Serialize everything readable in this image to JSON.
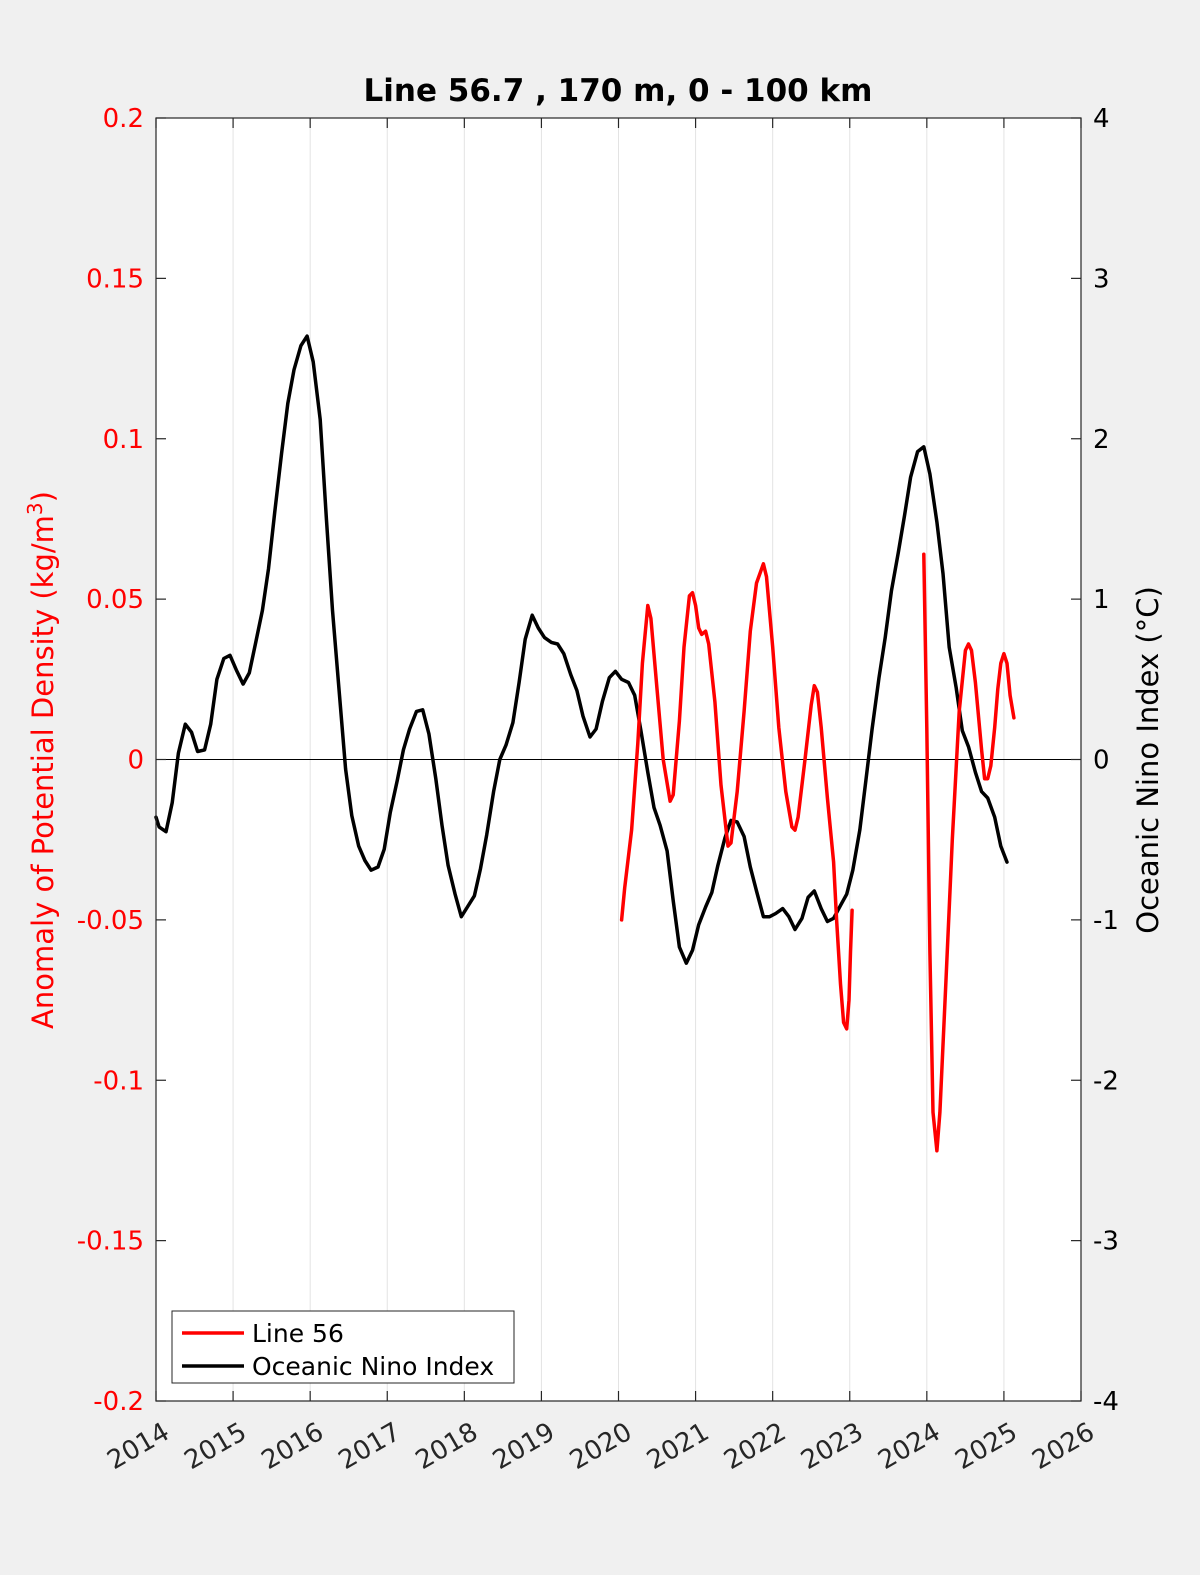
{
  "chart_data": {
    "type": "line",
    "title": "Line 56.7 , 170 m, 0 - 100 km",
    "xlabel": "",
    "ylabel_left": "Anomaly of Potential Density (kg/m",
    "ylabel_left_sup": "3",
    "ylabel_left_close": ")",
    "ylabel_right": "Oceanic Nino Index (°C)",
    "xlim": [
      2014,
      2026
    ],
    "ylim_left": [
      -0.2,
      0.2
    ],
    "ylim_right": [
      -4,
      4
    ],
    "x_ticks": [
      2014,
      2015,
      2016,
      2017,
      2018,
      2019,
      2020,
      2021,
      2022,
      2023,
      2024,
      2025,
      2026
    ],
    "x_tick_labels": [
      "2014",
      "2015",
      "2016",
      "2017",
      "2018",
      "2019",
      "2020",
      "2021",
      "2022",
      "2023",
      "2024",
      "2025",
      "2026"
    ],
    "y_left_ticks": [
      -0.2,
      -0.15,
      -0.1,
      -0.05,
      0,
      0.05,
      0.1,
      0.15,
      0.2
    ],
    "y_left_tick_labels": [
      "-0.2",
      "-0.15",
      "-0.1",
      "-0.05",
      "0",
      "0.05",
      "0.1",
      "0.15",
      "0.2"
    ],
    "y_right_ticks": [
      -4,
      -3,
      -2,
      -1,
      0,
      1,
      2,
      3,
      4
    ],
    "y_right_tick_labels": [
      "-4",
      "-3",
      "-2",
      "-1",
      "0",
      "1",
      "2",
      "3",
      "4"
    ],
    "grid": "vertical",
    "legend_position": "bottom-left",
    "colors": {
      "line56": "#ff0000",
      "oni": "#000000",
      "left_axis": "#ff0000",
      "right_axis": "#000000"
    },
    "series": [
      {
        "name": "Line 56",
        "axis": "left",
        "color": "#ff0000",
        "segments": [
          [
            [
              2020.04,
              -0.05
            ],
            [
              2020.08,
              -0.04
            ],
            [
              2020.17,
              -0.022
            ],
            [
              2020.25,
              0.005
            ],
            [
              2020.31,
              0.03
            ],
            [
              2020.38,
              0.048
            ],
            [
              2020.42,
              0.044
            ],
            [
              2020.5,
              0.022
            ],
            [
              2020.58,
              0.0
            ],
            [
              2020.67,
              -0.013
            ],
            [
              2020.71,
              -0.011
            ],
            [
              2020.79,
              0.012
            ],
            [
              2020.85,
              0.035
            ],
            [
              2020.92,
              0.051
            ],
            [
              2020.96,
              0.052
            ],
            [
              2021.0,
              0.048
            ],
            [
              2021.04,
              0.041
            ],
            [
              2021.08,
              0.039
            ],
            [
              2021.13,
              0.04
            ],
            [
              2021.17,
              0.036
            ],
            [
              2021.25,
              0.018
            ],
            [
              2021.33,
              -0.008
            ],
            [
              2021.42,
              -0.027
            ],
            [
              2021.46,
              -0.026
            ],
            [
              2021.54,
              -0.01
            ],
            [
              2021.63,
              0.015
            ],
            [
              2021.71,
              0.04
            ],
            [
              2021.79,
              0.055
            ],
            [
              2021.88,
              0.061
            ],
            [
              2021.92,
              0.057
            ],
            [
              2022.0,
              0.035
            ],
            [
              2022.08,
              0.01
            ],
            [
              2022.17,
              -0.01
            ],
            [
              2022.25,
              -0.021
            ],
            [
              2022.29,
              -0.022
            ],
            [
              2022.33,
              -0.018
            ],
            [
              2022.42,
              0.0
            ],
            [
              2022.5,
              0.017
            ],
            [
              2022.54,
              0.023
            ],
            [
              2022.58,
              0.021
            ],
            [
              2022.63,
              0.01
            ],
            [
              2022.71,
              -0.012
            ],
            [
              2022.79,
              -0.032
            ],
            [
              2022.83,
              -0.05
            ],
            [
              2022.88,
              -0.07
            ],
            [
              2022.92,
              -0.082
            ],
            [
              2022.96,
              -0.084
            ],
            [
              2022.99,
              -0.075
            ],
            [
              2023.01,
              -0.06
            ],
            [
              2023.03,
              -0.047
            ]
          ],
          [
            [
              2023.96,
              0.064
            ],
            [
              2024.0,
              0.01
            ],
            [
              2024.04,
              -0.06
            ],
            [
              2024.08,
              -0.11
            ],
            [
              2024.13,
              -0.122
            ],
            [
              2024.17,
              -0.11
            ],
            [
              2024.25,
              -0.068
            ],
            [
              2024.33,
              -0.025
            ],
            [
              2024.42,
              0.015
            ],
            [
              2024.5,
              0.034
            ],
            [
              2024.54,
              0.036
            ],
            [
              2024.58,
              0.034
            ],
            [
              2024.63,
              0.024
            ],
            [
              2024.71,
              0.003
            ],
            [
              2024.75,
              -0.006
            ],
            [
              2024.79,
              -0.006
            ],
            [
              2024.83,
              -0.002
            ],
            [
              2024.88,
              0.01
            ],
            [
              2024.92,
              0.022
            ],
            [
              2024.96,
              0.03
            ],
            [
              2025.0,
              0.033
            ],
            [
              2025.04,
              0.03
            ],
            [
              2025.08,
              0.02
            ],
            [
              2025.13,
              0.013
            ]
          ]
        ]
      },
      {
        "name": "Oceanic Nino Index",
        "axis": "right",
        "color": "#000000",
        "segments": [
          [
            [
              2014.0,
              -0.36
            ],
            [
              2014.04,
              -0.42
            ],
            [
              2014.13,
              -0.45
            ],
            [
              2014.21,
              -0.27
            ],
            [
              2014.29,
              0.04
            ],
            [
              2014.38,
              0.22
            ],
            [
              2014.46,
              0.17
            ],
            [
              2014.54,
              0.05
            ],
            [
              2014.63,
              0.06
            ],
            [
              2014.71,
              0.22
            ],
            [
              2014.79,
              0.5
            ],
            [
              2014.88,
              0.63
            ],
            [
              2014.96,
              0.65
            ],
            [
              2015.04,
              0.56
            ],
            [
              2015.13,
              0.47
            ],
            [
              2015.21,
              0.54
            ],
            [
              2015.29,
              0.72
            ],
            [
              2015.38,
              0.93
            ],
            [
              2015.46,
              1.19
            ],
            [
              2015.54,
              1.54
            ],
            [
              2015.63,
              1.91
            ],
            [
              2015.71,
              2.22
            ],
            [
              2015.79,
              2.43
            ],
            [
              2015.88,
              2.58
            ],
            [
              2015.96,
              2.64
            ],
            [
              2016.04,
              2.48
            ],
            [
              2016.13,
              2.12
            ],
            [
              2016.21,
              1.5
            ],
            [
              2016.29,
              0.93
            ],
            [
              2016.38,
              0.4
            ],
            [
              2016.46,
              -0.06
            ],
            [
              2016.54,
              -0.35
            ],
            [
              2016.63,
              -0.54
            ],
            [
              2016.71,
              -0.63
            ],
            [
              2016.79,
              -0.69
            ],
            [
              2016.88,
              -0.67
            ],
            [
              2016.96,
              -0.56
            ],
            [
              2017.04,
              -0.33
            ],
            [
              2017.13,
              -0.13
            ],
            [
              2017.21,
              0.06
            ],
            [
              2017.29,
              0.19
            ],
            [
              2017.38,
              0.3
            ],
            [
              2017.46,
              0.31
            ],
            [
              2017.54,
              0.16
            ],
            [
              2017.63,
              -0.12
            ],
            [
              2017.71,
              -0.41
            ],
            [
              2017.79,
              -0.66
            ],
            [
              2017.88,
              -0.84
            ],
            [
              2017.96,
              -0.98
            ],
            [
              2018.04,
              -0.92
            ],
            [
              2018.13,
              -0.85
            ],
            [
              2018.21,
              -0.68
            ],
            [
              2018.29,
              -0.47
            ],
            [
              2018.38,
              -0.2
            ],
            [
              2018.46,
              0.0
            ],
            [
              2018.54,
              0.09
            ],
            [
              2018.63,
              0.23
            ],
            [
              2018.71,
              0.48
            ],
            [
              2018.79,
              0.75
            ],
            [
              2018.88,
              0.9
            ],
            [
              2018.96,
              0.82
            ],
            [
              2019.04,
              0.76
            ],
            [
              2019.13,
              0.73
            ],
            [
              2019.21,
              0.72
            ],
            [
              2019.29,
              0.66
            ],
            [
              2019.38,
              0.53
            ],
            [
              2019.46,
              0.43
            ],
            [
              2019.54,
              0.27
            ],
            [
              2019.63,
              0.14
            ],
            [
              2019.71,
              0.19
            ],
            [
              2019.79,
              0.36
            ],
            [
              2019.88,
              0.51
            ],
            [
              2019.96,
              0.55
            ],
            [
              2020.04,
              0.5
            ],
            [
              2020.13,
              0.48
            ],
            [
              2020.21,
              0.4
            ],
            [
              2020.29,
              0.18
            ],
            [
              2020.38,
              -0.08
            ],
            [
              2020.46,
              -0.3
            ],
            [
              2020.54,
              -0.41
            ],
            [
              2020.63,
              -0.57
            ],
            [
              2020.71,
              -0.88
            ],
            [
              2020.79,
              -1.17
            ],
            [
              2020.88,
              -1.27
            ],
            [
              2020.96,
              -1.19
            ],
            [
              2021.04,
              -1.03
            ],
            [
              2021.13,
              -0.92
            ],
            [
              2021.21,
              -0.83
            ],
            [
              2021.29,
              -0.66
            ],
            [
              2021.38,
              -0.49
            ],
            [
              2021.46,
              -0.38
            ],
            [
              2021.54,
              -0.39
            ],
            [
              2021.63,
              -0.48
            ],
            [
              2021.71,
              -0.67
            ],
            [
              2021.79,
              -0.82
            ],
            [
              2021.88,
              -0.98
            ],
            [
              2021.96,
              -0.98
            ],
            [
              2022.04,
              -0.96
            ],
            [
              2022.13,
              -0.93
            ],
            [
              2022.21,
              -0.98
            ],
            [
              2022.29,
              -1.06
            ],
            [
              2022.38,
              -0.99
            ],
            [
              2022.46,
              -0.86
            ],
            [
              2022.54,
              -0.82
            ],
            [
              2022.63,
              -0.93
            ],
            [
              2022.71,
              -1.01
            ],
            [
              2022.79,
              -0.99
            ],
            [
              2022.88,
              -0.91
            ],
            [
              2022.96,
              -0.84
            ],
            [
              2023.04,
              -0.69
            ],
            [
              2023.13,
              -0.44
            ],
            [
              2023.21,
              -0.13
            ],
            [
              2023.29,
              0.19
            ],
            [
              2023.38,
              0.51
            ],
            [
              2023.46,
              0.76
            ],
            [
              2023.54,
              1.05
            ],
            [
              2023.63,
              1.29
            ],
            [
              2023.71,
              1.52
            ],
            [
              2023.79,
              1.76
            ],
            [
              2023.88,
              1.92
            ],
            [
              2023.96,
              1.95
            ],
            [
              2024.04,
              1.78
            ],
            [
              2024.13,
              1.48
            ],
            [
              2024.21,
              1.16
            ],
            [
              2024.29,
              0.7
            ],
            [
              2024.38,
              0.45
            ],
            [
              2024.46,
              0.18
            ],
            [
              2024.54,
              0.08
            ],
            [
              2024.63,
              -0.08
            ],
            [
              2024.71,
              -0.2
            ],
            [
              2024.79,
              -0.24
            ],
            [
              2024.88,
              -0.36
            ],
            [
              2024.96,
              -0.54
            ],
            [
              2025.04,
              -0.64
            ]
          ]
        ]
      }
    ]
  }
}
